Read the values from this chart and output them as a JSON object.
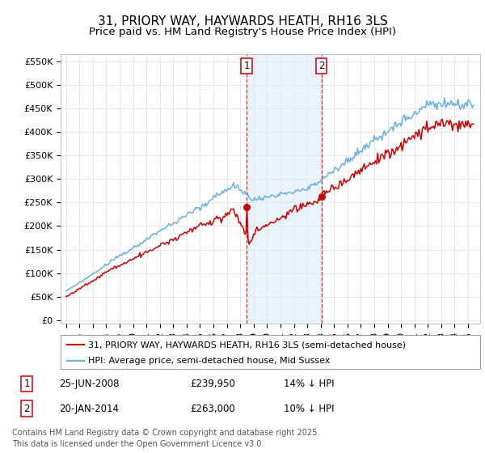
{
  "title": "31, PRIORY WAY, HAYWARDS HEATH, RH16 3LS",
  "subtitle": "Price paid vs. HM Land Registry's House Price Index (HPI)",
  "yticks": [
    0,
    50000,
    100000,
    150000,
    200000,
    250000,
    300000,
    350000,
    400000,
    450000,
    500000,
    550000
  ],
  "ytick_labels": [
    "£0",
    "£50K",
    "£100K",
    "£150K",
    "£200K",
    "£250K",
    "£300K",
    "£350K",
    "£400K",
    "£450K",
    "£500K",
    "£550K"
  ],
  "ylim": [
    -8000,
    565000
  ],
  "hpi_color": "#6ab0e0",
  "price_color": "#cc0000",
  "vline_color": "#cc0000",
  "vshade_color": "#daeaf7",
  "marker1_date": 2008.48,
  "marker2_date": 2014.05,
  "marker1_price": 239950,
  "marker2_price": 263000,
  "marker1_label": "1",
  "marker2_label": "2",
  "legend_label_price": "31, PRIORY WAY, HAYWARDS HEATH, RH16 3LS (semi-detached house)",
  "legend_label_hpi": "HPI: Average price, semi-detached house, Mid Sussex",
  "bg_color": "#ffffff",
  "grid_color": "#dddddd",
  "title_fontsize": 11,
  "subtitle_fontsize": 9.5,
  "tick_fontsize": 8,
  "legend_fontsize": 8,
  "annotation_fontsize": 8.5,
  "footer_fontsize": 7,
  "footer": "Contains HM Land Registry data © Crown copyright and database right 2025.\nThis data is licensed under the Open Government Licence v3.0."
}
